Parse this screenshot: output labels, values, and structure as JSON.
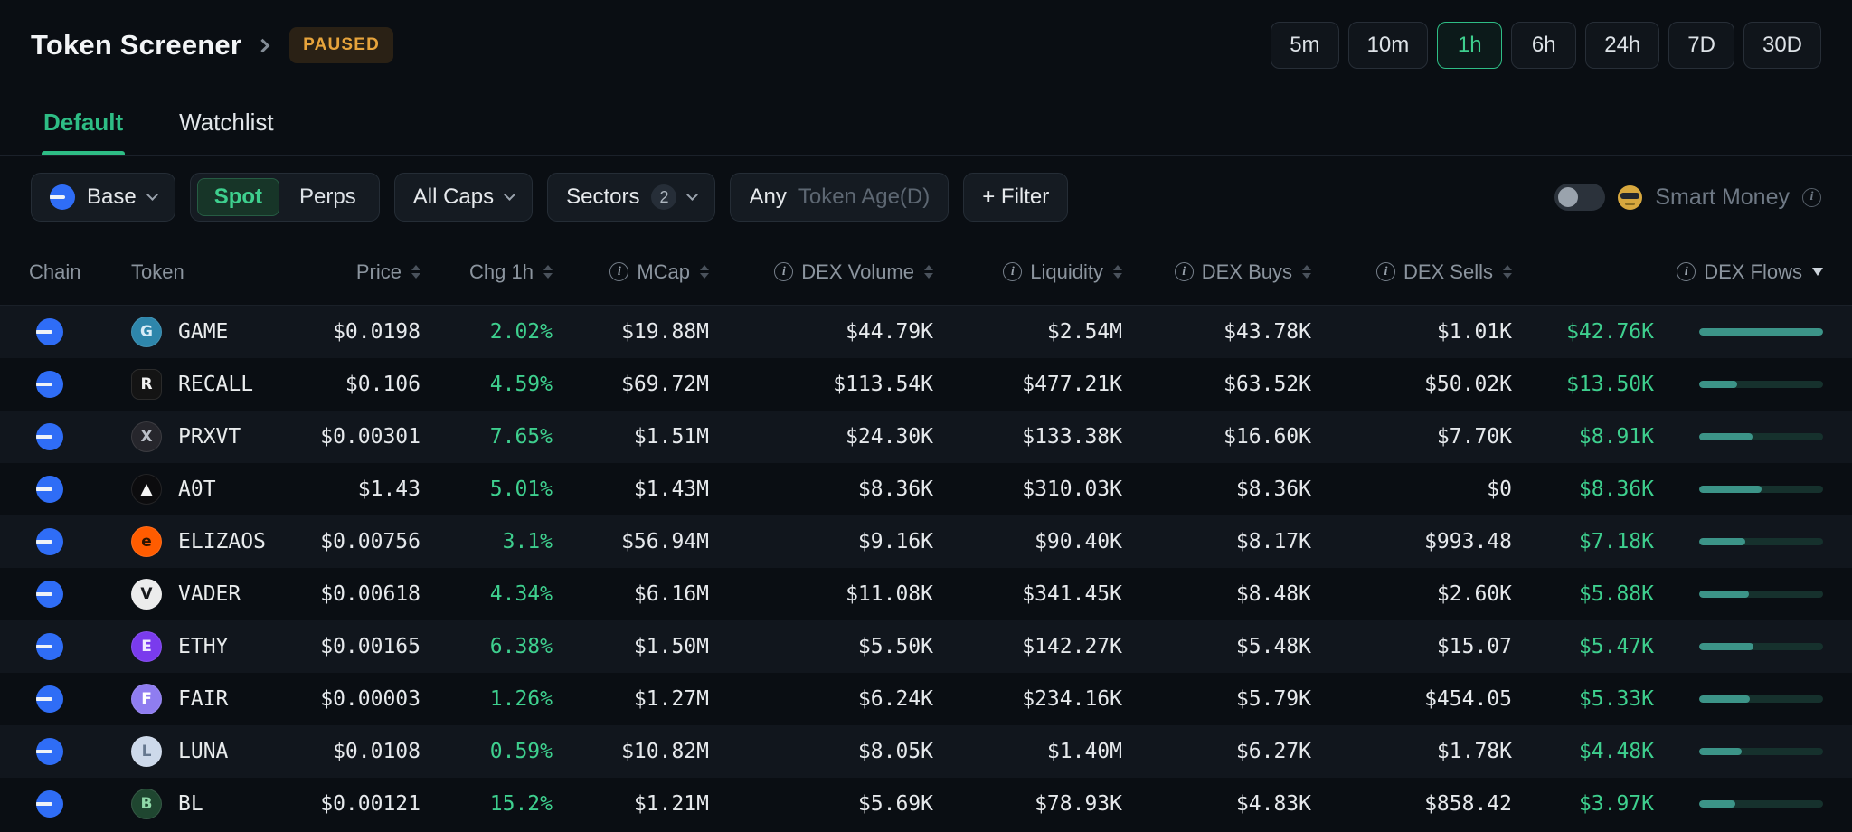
{
  "header": {
    "title": "Token Screener",
    "paused_badge": "PAUSED",
    "timeframes": [
      "5m",
      "10m",
      "1h",
      "6h",
      "24h",
      "7D",
      "30D"
    ],
    "active_timeframe": "1h"
  },
  "tabs": [
    {
      "label": "Default",
      "active": true
    },
    {
      "label": "Watchlist",
      "active": false
    }
  ],
  "filters": {
    "chain": {
      "label": "Base"
    },
    "market_type": {
      "options": [
        "Spot",
        "Perps"
      ],
      "selected": "Spot"
    },
    "caps": {
      "label": "All Caps"
    },
    "sectors": {
      "label": "Sectors",
      "count": "2"
    },
    "token_age": {
      "value": "Any",
      "placeholder": "Token Age(D)"
    },
    "add_filter": {
      "label": "+ Filter"
    },
    "smart_money": {
      "label": "Smart Money",
      "enabled": false
    }
  },
  "colors": {
    "accent_green": "#2ebd85",
    "value_green": "#3ecf8e",
    "paused_amber": "#e7a43c",
    "base_blue": "#2f6df6",
    "bar_fill": "#3c9488"
  },
  "table": {
    "columns": [
      {
        "label": "Chain",
        "align": "left",
        "info": false,
        "sortable": false
      },
      {
        "label": "Token",
        "align": "left",
        "info": false,
        "sortable": false
      },
      {
        "label": "Price",
        "align": "right",
        "info": false,
        "sortable": true
      },
      {
        "label": "Chg 1h",
        "align": "right",
        "info": false,
        "sortable": true
      },
      {
        "label": "MCap",
        "align": "right",
        "info": true,
        "sortable": true
      },
      {
        "label": "DEX Volume",
        "align": "right",
        "info": true,
        "sortable": true
      },
      {
        "label": "Liquidity",
        "align": "right",
        "info": true,
        "sortable": true
      },
      {
        "label": "DEX Buys",
        "align": "right",
        "info": true,
        "sortable": true
      },
      {
        "label": "DEX Sells",
        "align": "right",
        "info": true,
        "sortable": true
      },
      {
        "label": "DEX Flows",
        "align": "right",
        "info": true,
        "sortable": true,
        "sorted": "desc"
      }
    ],
    "rows": [
      {
        "chain": "Base",
        "token": "GAME",
        "icon": {
          "bg": "#2e86ab",
          "fg": "#d7ecf7",
          "glyph": "G",
          "shape": "circle"
        },
        "price": "$0.0198",
        "chg": "2.02%",
        "mcap": "$19.88M",
        "volume": "$44.79K",
        "liquidity": "$2.54M",
        "buys": "$43.78K",
        "sells": "$1.01K",
        "flows": "$42.76K",
        "bar_pct": 100
      },
      {
        "chain": "Base",
        "token": "RECALL",
        "icon": {
          "bg": "#141414",
          "fg": "#f2f2f2",
          "glyph": "R",
          "shape": "squircle"
        },
        "price": "$0.106",
        "chg": "4.59%",
        "mcap": "$69.72M",
        "volume": "$113.54K",
        "liquidity": "$477.21K",
        "buys": "$63.52K",
        "sells": "$50.02K",
        "flows": "$13.50K",
        "bar_pct": 31
      },
      {
        "chain": "Base",
        "token": "PRXVT",
        "icon": {
          "bg": "#26262c",
          "fg": "#b9bec6",
          "glyph": "X",
          "shape": "circle"
        },
        "price": "$0.00301",
        "chg": "7.65%",
        "mcap": "$1.51M",
        "volume": "$24.30K",
        "liquidity": "$133.38K",
        "buys": "$16.60K",
        "sells": "$7.70K",
        "flows": "$8.91K",
        "bar_pct": 43
      },
      {
        "chain": "Base",
        "token": "A0T",
        "icon": {
          "bg": "#0c0c0e",
          "fg": "#f5f5f5",
          "glyph": "▲",
          "shape": "circle"
        },
        "price": "$1.43",
        "chg": "5.01%",
        "mcap": "$1.43M",
        "volume": "$8.36K",
        "liquidity": "$310.03K",
        "buys": "$8.36K",
        "sells": "$0",
        "flows": "$8.36K",
        "bar_pct": 50
      },
      {
        "chain": "Base",
        "token": "ELIZAOS",
        "icon": {
          "bg": "#ff5c00",
          "fg": "#2b1400",
          "glyph": "e",
          "shape": "circle"
        },
        "price": "$0.00756",
        "chg": "3.1%",
        "mcap": "$56.94M",
        "volume": "$9.16K",
        "liquidity": "$90.40K",
        "buys": "$8.17K",
        "sells": "$993.48",
        "flows": "$7.18K",
        "bar_pct": 37
      },
      {
        "chain": "Base",
        "token": "VADER",
        "icon": {
          "bg": "#ececec",
          "fg": "#17181b",
          "glyph": "V",
          "shape": "circle"
        },
        "price": "$0.00618",
        "chg": "4.34%",
        "mcap": "$6.16M",
        "volume": "$11.08K",
        "liquidity": "$341.45K",
        "buys": "$8.48K",
        "sells": "$2.60K",
        "flows": "$5.88K",
        "bar_pct": 40
      },
      {
        "chain": "Base",
        "token": "ETHY",
        "icon": {
          "bg": "#7a3bed",
          "fg": "#efe9ff",
          "glyph": "E",
          "shape": "circle"
        },
        "price": "$0.00165",
        "chg": "6.38%",
        "mcap": "$1.50M",
        "volume": "$5.50K",
        "liquidity": "$142.27K",
        "buys": "$5.48K",
        "sells": "$15.07",
        "flows": "$5.47K",
        "bar_pct": 44
      },
      {
        "chain": "Base",
        "token": "FAIR",
        "icon": {
          "bg": "#8f7df0",
          "fg": "#ffffff",
          "glyph": "F",
          "shape": "circle"
        },
        "price": "$0.00003",
        "chg": "1.26%",
        "mcap": "$1.27M",
        "volume": "$6.24K",
        "liquidity": "$234.16K",
        "buys": "$5.79K",
        "sells": "$454.05",
        "flows": "$5.33K",
        "bar_pct": 41
      },
      {
        "chain": "Base",
        "token": "LUNA",
        "icon": {
          "bg": "#cdd9ea",
          "fg": "#66788f",
          "glyph": "L",
          "shape": "circle"
        },
        "price": "$0.0108",
        "chg": "0.59%",
        "mcap": "$10.82M",
        "volume": "$8.05K",
        "liquidity": "$1.40M",
        "buys": "$6.27K",
        "sells": "$1.78K",
        "flows": "$4.48K",
        "bar_pct": 34
      },
      {
        "chain": "Base",
        "token": "BL",
        "icon": {
          "bg": "#1f4630",
          "fg": "#8fd8a8",
          "glyph": "B",
          "shape": "circle"
        },
        "price": "$0.00121",
        "chg": "15.2%",
        "mcap": "$1.21M",
        "volume": "$5.69K",
        "liquidity": "$78.93K",
        "buys": "$4.83K",
        "sells": "$858.42",
        "flows": "$3.97K",
        "bar_pct": 29
      }
    ]
  }
}
